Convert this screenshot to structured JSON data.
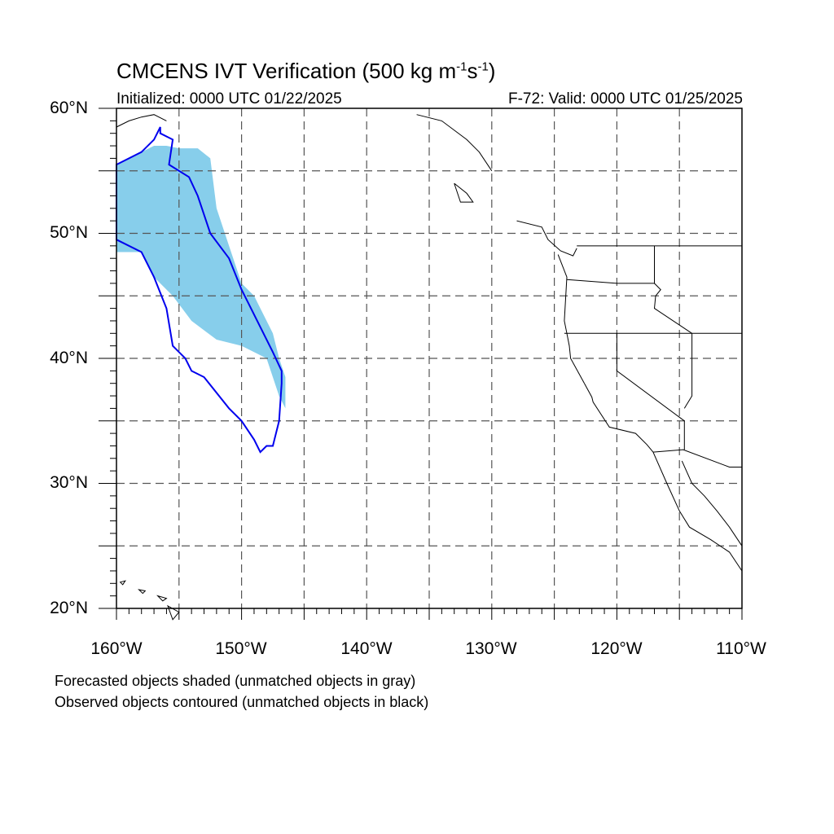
{
  "title": {
    "main": "CMCENS IVT Verification (500 kg m",
    "sup1": "-1",
    "mid": "s",
    "sup2": "-1",
    "end": ")"
  },
  "subtitle": {
    "left": "Initialized: 0000 UTC 01/22/2025",
    "right": "F-72: Valid: 0000 UTC 01/25/2025"
  },
  "axes": {
    "lat_labels": [
      "60°N",
      "50°N",
      "40°N",
      "30°N",
      "20°N"
    ],
    "lon_labels": [
      "160°W",
      "150°W",
      "140°W",
      "130°W",
      "120°W",
      "110°W"
    ]
  },
  "notes": {
    "line1": "Forecasted objects shaded (unmatched objects in gray)",
    "line2": "Observed objects contoured (unmatched objects in black)"
  },
  "map": {
    "lon_range": [
      -160,
      -110
    ],
    "lat_range": [
      20,
      60
    ],
    "gridlines": "dashed every 5°",
    "colors": {
      "forecast_fill": "#87ceeb",
      "observed_contour": "#0000ee",
      "coastline": "#000000",
      "grid": "#555555"
    },
    "forecast_object": {
      "lon": [
        -160,
        -158,
        -157,
        -156,
        -155,
        -153.5,
        -152.5,
        -152,
        -151,
        -150,
        -149,
        -147.5,
        -147,
        -146.5,
        -146.5,
        -147,
        -148,
        -150,
        -152,
        -154,
        -155.5,
        -157,
        -158,
        -160
      ],
      "lat": [
        55.5,
        56.5,
        57,
        57,
        56.8,
        56.8,
        56,
        52,
        49,
        46,
        45,
        42,
        40,
        38.5,
        36,
        37,
        40,
        41,
        41.5,
        43,
        45,
        46.5,
        48.5,
        48.5
      ]
    },
    "observed_object": {
      "lon": [
        -160,
        -158,
        -157,
        -156.5,
        -156.5,
        -155.5,
        -155.8,
        -154.2,
        -153.5,
        -152.5,
        -151,
        -150,
        -149.5,
        -147.5,
        -146.8,
        -146.8,
        -147,
        -147.5,
        -148,
        -148.5,
        -149,
        -150,
        -151,
        -153,
        -154,
        -154.5,
        -155,
        -155.5,
        -156,
        -157,
        -158,
        -160
      ],
      "lat": [
        55.5,
        56.5,
        57.5,
        58.5,
        58,
        57.5,
        55.5,
        54.5,
        53,
        50,
        48,
        45.5,
        44.5,
        40.5,
        39,
        38,
        35,
        33,
        33,
        32.5,
        33.5,
        35,
        36,
        38.5,
        39,
        40,
        40.5,
        41,
        44,
        46.5,
        48.5,
        49.5
      ]
    },
    "coastline": [
      {
        "lon": [
          -160,
          -159,
          -158,
          -157,
          -156
        ],
        "lat": [
          58.5,
          59,
          59.3,
          59.5,
          59
        ]
      },
      {
        "lon": [
          -136,
          -134,
          -132,
          -131,
          -130
        ],
        "lat": [
          59.5,
          59,
          57.5,
          56.5,
          55
        ]
      },
      {
        "lon": [
          -133,
          -132,
          -131.5,
          -132.5,
          -133
        ],
        "lat": [
          54,
          53.2,
          52.5,
          52.5,
          54
        ]
      },
      {
        "lon": [
          -128,
          -126,
          -125.5,
          -124.5,
          -123.5,
          -123.2
        ],
        "lat": [
          51,
          50.5,
          49.5,
          48.6,
          48.2,
          48.8
        ]
      },
      {
        "lon": [
          -124.7,
          -124,
          -124.2,
          -124,
          -123.8,
          -123.7,
          -122.6
        ],
        "lat": [
          48.3,
          46.5,
          43,
          42,
          41,
          40,
          38
        ]
      },
      {
        "lon": [
          -122.6,
          -122,
          -121.9,
          -120.6,
          -118.5,
          -117.6,
          -117.1
        ],
        "lat": [
          38,
          36.9,
          36.5,
          34.5,
          34,
          33.1,
          32.5
        ]
      },
      {
        "lon": [
          -117.1,
          -116,
          -115,
          -114.2,
          -112.5,
          -111,
          -110
        ],
        "lat": [
          32.5,
          30,
          27.8,
          26.5,
          25.5,
          24.5,
          23
        ]
      },
      {
        "lon": [
          -114.8,
          -114,
          -113,
          -112,
          -111,
          -110
        ],
        "lat": [
          31.8,
          30,
          29,
          27.8,
          26.5,
          25
        ]
      }
    ],
    "borders": [
      {
        "lon": [
          -123.2,
          -110
        ],
        "lat": [
          49,
          49
        ]
      },
      {
        "lon": [
          -124.2,
          -117,
          -110
        ],
        "lat": [
          42,
          42,
          42
        ]
      },
      {
        "lon": [
          -120,
          -120,
          -114.6,
          -114.6
        ],
        "lat": [
          42,
          39,
          35,
          32.7
        ]
      },
      {
        "lon": [
          -117.1,
          -114.7,
          -111,
          -110
        ],
        "lat": [
          32.5,
          32.7,
          31.3,
          31.3
        ]
      },
      {
        "lon": [
          -117,
          -117,
          -116.5,
          -116.9,
          -117,
          -114
        ],
        "lat": [
          49,
          46,
          45.5,
          45,
          44,
          42
        ]
      },
      {
        "lon": [
          -124,
          -120,
          -117
        ],
        "lat": [
          46.3,
          46,
          46
        ]
      },
      {
        "lon": [
          -114,
          -114,
          -114.6
        ],
        "lat": [
          42,
          37,
          36
        ]
      }
    ],
    "islands": [
      {
        "lon": [
          -159.7,
          -159.3,
          -159.5
        ],
        "lat": [
          22.1,
          22.2,
          21.9
        ]
      },
      {
        "lon": [
          -158.2,
          -157.7,
          -157.9
        ],
        "lat": [
          21.5,
          21.4,
          21.2
        ]
      },
      {
        "lon": [
          -156.7,
          -156,
          -156.3
        ],
        "lat": [
          21,
          20.8,
          20.6
        ]
      },
      {
        "lon": [
          -155.9,
          -155,
          -155.5
        ],
        "lat": [
          20.2,
          19.7,
          19.1
        ]
      }
    ]
  }
}
